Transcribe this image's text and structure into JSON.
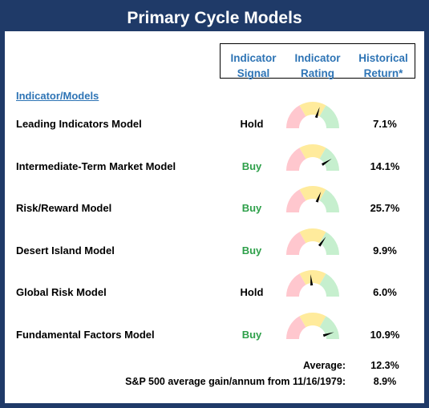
{
  "title": "Primary Cycle Models",
  "headers": {
    "signal": [
      "Indicator",
      "Signal"
    ],
    "rating": [
      "Indicator",
      "Rating"
    ],
    "return": [
      "Historical",
      "Return*"
    ]
  },
  "section_label": "Indicator/Models",
  "colors": {
    "frame": "#1f3a68",
    "header_text": "#2e74b5",
    "buy": "#2ea04a",
    "gauge_red": "#ffc7ce",
    "gauge_yellow": "#ffeb9c",
    "gauge_green": "#c6efce"
  },
  "models": [
    {
      "name": "Leading Indicators Model",
      "signal": "Hold",
      "signal_type": "hold",
      "rating": 0.6,
      "return": "7.1%"
    },
    {
      "name": "Intermediate-Term Market Model",
      "signal": "Buy",
      "signal_type": "buy",
      "rating": 0.82,
      "return": "14.1%"
    },
    {
      "name": "Risk/Reward Model",
      "signal": "Buy",
      "signal_type": "buy",
      "rating": 0.62,
      "return": "25.7%"
    },
    {
      "name": "Desert Island Model",
      "signal": "Buy",
      "signal_type": "buy",
      "rating": 0.7,
      "return": "9.9%"
    },
    {
      "name": "Global Risk Model",
      "signal": "Hold",
      "signal_type": "hold",
      "rating": 0.47,
      "return": "6.0%"
    },
    {
      "name": "Fundamental Factors Model",
      "signal": "Buy",
      "signal_type": "buy",
      "rating": 0.9,
      "return": "10.9%"
    }
  ],
  "average": {
    "label": "Average:",
    "value": "12.3%"
  },
  "sp500": {
    "label": "S&P 500 average gain/annum from 11/16/1979:",
    "value": "8.9%"
  }
}
